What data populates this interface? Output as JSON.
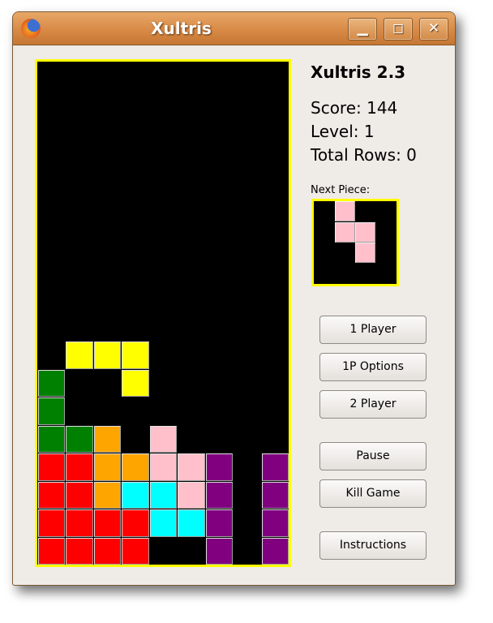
{
  "window": {
    "title": "Xultris",
    "icon": "firefox-icon",
    "minimize": "▁",
    "maximize": "◻",
    "close": "✕"
  },
  "game": {
    "version": "Xultris 2.3",
    "score_text": "Score: 144",
    "level_text": "Level: 1",
    "rows_text": "Total Rows: 0",
    "next_label": "Next Piece:",
    "columns": 9,
    "board_rows": [
      ".........",
      ".........",
      ".........",
      ".........",
      ".........",
      ".........",
      ".........",
      ".........",
      ".........",
      ".........",
      ".YYY.....",
      "G..Y.....",
      "G........",
      "GGO.K....",
      "RROOKKP.P",
      "RROCCKP.P",
      "RRRRCCP.P",
      "RRRR..P.P"
    ],
    "next_piece": [
      ".K..",
      ".KK.",
      "..K.",
      "...."
    ],
    "colors": {
      "R": "#ff0000",
      "G": "#008000",
      "O": "#ffa500",
      "Y": "#ffff00",
      "C": "#00ffff",
      "K": "#ffc0cb",
      "P": "#800080",
      "board_bg": "#000000",
      "border": "#ffff00"
    }
  },
  "buttons": {
    "one_player": "1 Player",
    "options": "1P Options",
    "two_player": "2 Player",
    "pause": "Pause",
    "kill": "Kill Game",
    "instructions": "Instructions"
  }
}
